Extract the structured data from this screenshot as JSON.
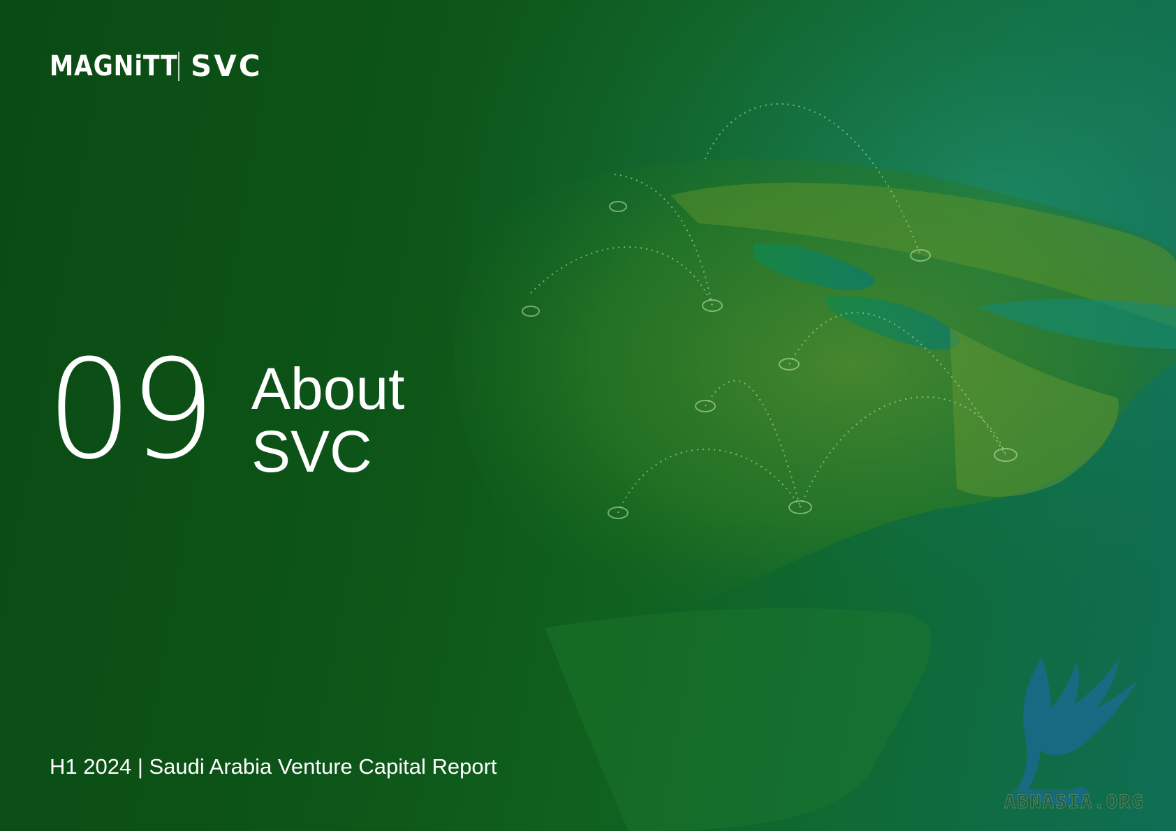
{
  "header": {
    "logo_primary": "MAGNiTT",
    "logo_secondary": "SVC"
  },
  "section": {
    "number": "09",
    "title_line1": "About",
    "title_line2": "SVC"
  },
  "footer": {
    "report_label": "H1 2024 | Saudi Arabia Venture Capital Report"
  },
  "watermark": {
    "text": "ABNASIA.ORG",
    "icon": "griffin-logo-icon"
  },
  "colors": {
    "background_dark": "#0a4a14",
    "background_teal": "#0f6e55",
    "text": "#ffffff",
    "watermark": "#1a6a8a"
  }
}
